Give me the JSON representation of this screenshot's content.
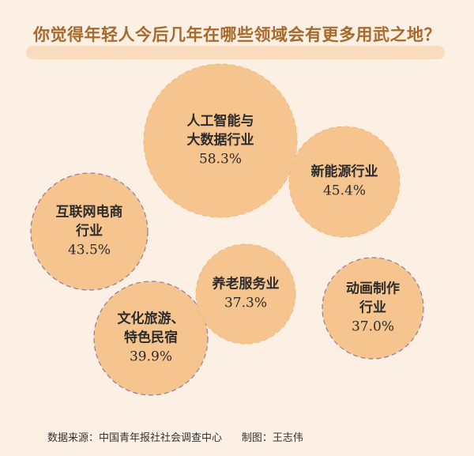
{
  "chart_data": {
    "type": "bubble",
    "title": "你觉得年轻人今后几年在哪些领域会有更多用武之地？",
    "unit": "%",
    "items": [
      {
        "label": "人工智能与\n大数据行业",
        "value": 58.3,
        "value_label": "58.3%"
      },
      {
        "label": "新能源行业",
        "value": 45.4,
        "value_label": "45.4%"
      },
      {
        "label": "互联网电商\n行业",
        "value": 43.5,
        "value_label": "43.5%"
      },
      {
        "label": "文化旅游、\n特色民宿",
        "value": 39.9,
        "value_label": "39.9%"
      },
      {
        "label": "养老服务业",
        "value": 37.3,
        "value_label": "37.3%"
      },
      {
        "label": "动画制作\n行业",
        "value": 37.0,
        "value_label": "37.0%"
      }
    ],
    "colors": {
      "bubble": "#f6c48f",
      "border": "#9a7a90",
      "title": "#a66a2c",
      "background": "#fcefe3"
    }
  },
  "footer": {
    "source": "数据来源：中国青年报社社会调查中心",
    "credit": "制图：王志伟"
  }
}
